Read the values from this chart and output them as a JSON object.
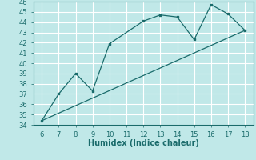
{
  "xlabel": "Humidex (Indice chaleur)",
  "line1_x": [
    6,
    7,
    8,
    9,
    10,
    12,
    13,
    14,
    15,
    16,
    17,
    18
  ],
  "line1_y": [
    34.4,
    37.0,
    39.0,
    37.3,
    41.9,
    44.1,
    44.7,
    44.5,
    42.3,
    45.7,
    44.8,
    43.2
  ],
  "line2_x": [
    6,
    18
  ],
  "line2_y": [
    34.4,
    43.2
  ],
  "xlim": [
    5.5,
    18.5
  ],
  "ylim": [
    34,
    46
  ],
  "xticks": [
    6,
    7,
    8,
    9,
    10,
    11,
    12,
    13,
    14,
    15,
    16,
    17,
    18
  ],
  "yticks": [
    34,
    35,
    36,
    37,
    38,
    39,
    40,
    41,
    42,
    43,
    44,
    45,
    46
  ],
  "line_color": "#1a6b6b",
  "bg_color": "#c0e8e8",
  "grid_color": "#ffffff",
  "tick_fontsize": 6.0,
  "xlabel_fontsize": 7.0
}
